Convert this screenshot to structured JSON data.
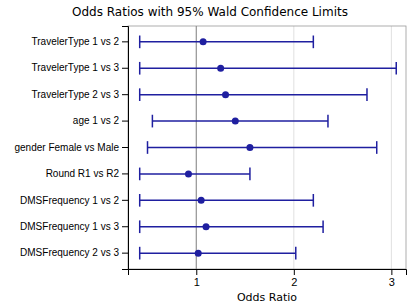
{
  "chart_data": {
    "type": "forest",
    "title": "Odds Ratios with 95% Wald Confidence Limits",
    "x_label": "Odds Ratio",
    "orientation": "horizontal",
    "categories": [
      "TravelerType 1 vs 2",
      "TravelerType 1 vs 3",
      "TravelerType 2 vs 3",
      "age 1 vs 2",
      "gender Female vs Male",
      "Round R1 vs R2",
      "DMSFrequency 1 vs 2",
      "DMSFrequency 1 vs 3",
      "DMSFrequency 2 vs 3"
    ],
    "values": [
      1.07,
      1.25,
      1.3,
      1.4,
      1.55,
      0.92,
      1.05,
      1.1,
      1.02
    ],
    "ci_lower": [
      0.42,
      0.42,
      0.42,
      0.55,
      0.5,
      0.42,
      0.42,
      0.42,
      0.42
    ],
    "ci_upper": [
      2.2,
      3.05,
      2.75,
      2.35,
      2.85,
      1.55,
      2.2,
      2.3,
      2.02
    ],
    "reference_line": 1,
    "color": "#1F1FA0",
    "xlim": [
      0.3,
      3.15
    ],
    "xticks": [
      1,
      2,
      3
    ],
    "grid": true
  }
}
